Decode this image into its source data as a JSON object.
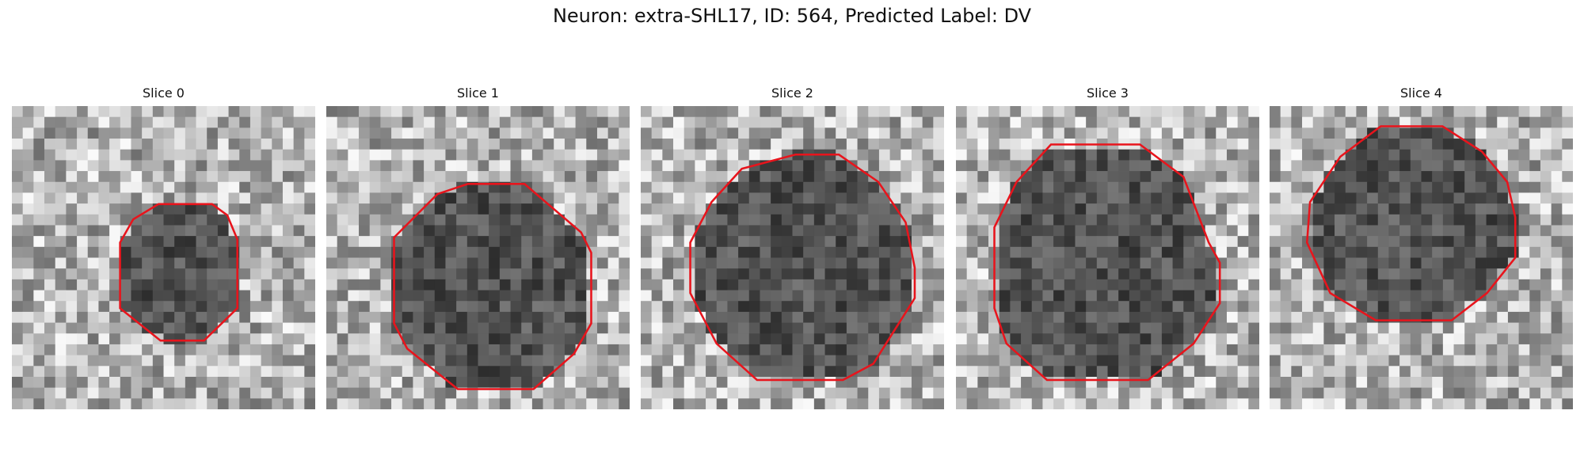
{
  "title": "Neuron: extra-SHL17, ID: 564, Predicted Label: DV",
  "panels": [
    {
      "title": "Slice 0"
    },
    {
      "title": "Slice 1"
    },
    {
      "title": "Slice 2"
    },
    {
      "title": "Slice 3"
    },
    {
      "title": "Slice 4"
    }
  ]
}
